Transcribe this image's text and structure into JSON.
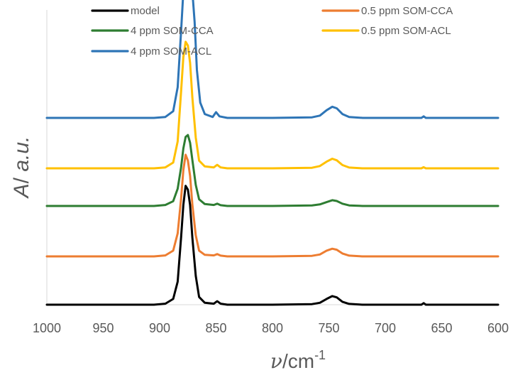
{
  "chart_data": {
    "type": "line",
    "xlabel_symbol": "ν",
    "xlabel_unit": "/cm",
    "xlabel_sup": "-1",
    "ylabel_italic": "A",
    "ylabel_slash": "/ ",
    "ylabel_unit": "a.u.",
    "xlim": [
      1000,
      600
    ],
    "x_reversed": true,
    "x_ticks": [
      "1000",
      "950",
      "900",
      "850",
      "800",
      "750",
      "700",
      "650",
      "600"
    ],
    "y_tick_labels": false,
    "grid": false,
    "legend_position": "top",
    "series": [
      {
        "name": "model",
        "color": "#000000",
        "baseline": 0.0,
        "points": [
          [
            1000,
            0.0
          ],
          [
            950,
            0.0
          ],
          [
            905,
            0.0
          ],
          [
            895,
            0.005
          ],
          [
            888,
            0.03
          ],
          [
            884,
            0.12
          ],
          [
            881,
            0.35
          ],
          [
            879,
            0.52
          ],
          [
            877,
            0.62
          ],
          [
            875,
            0.6
          ],
          [
            873,
            0.52
          ],
          [
            871,
            0.35
          ],
          [
            868,
            0.15
          ],
          [
            865,
            0.04
          ],
          [
            860,
            0.01
          ],
          [
            852,
            0.005
          ],
          [
            849,
            0.018
          ],
          [
            846,
            0.005
          ],
          [
            840,
            0.0
          ],
          [
            800,
            0.0
          ],
          [
            765,
            0.003
          ],
          [
            758,
            0.01
          ],
          [
            752,
            0.03
          ],
          [
            747,
            0.045
          ],
          [
            743,
            0.038
          ],
          [
            738,
            0.015
          ],
          [
            732,
            0.004
          ],
          [
            720,
            0.0
          ],
          [
            700,
            0.0
          ],
          [
            668,
            0.0
          ],
          [
            666,
            0.008
          ],
          [
            664,
            0.0
          ],
          [
            640,
            0.0
          ],
          [
            600,
            0.0
          ]
        ]
      },
      {
        "name": "0.5 ppm SOM-CCA",
        "color": "#ed7d31",
        "baseline": 0.0,
        "points": [
          [
            1000,
            0.0
          ],
          [
            950,
            0.0
          ],
          [
            905,
            0.0
          ],
          [
            895,
            0.005
          ],
          [
            888,
            0.03
          ],
          [
            884,
            0.12
          ],
          [
            881,
            0.3
          ],
          [
            879,
            0.45
          ],
          [
            877,
            0.53
          ],
          [
            875,
            0.5
          ],
          [
            873,
            0.42
          ],
          [
            871,
            0.27
          ],
          [
            868,
            0.11
          ],
          [
            865,
            0.03
          ],
          [
            860,
            0.008
          ],
          [
            852,
            0.005
          ],
          [
            849,
            0.012
          ],
          [
            846,
            0.004
          ],
          [
            840,
            0.0
          ],
          [
            800,
            0.0
          ],
          [
            765,
            0.003
          ],
          [
            758,
            0.01
          ],
          [
            752,
            0.03
          ],
          [
            747,
            0.04
          ],
          [
            743,
            0.035
          ],
          [
            738,
            0.015
          ],
          [
            732,
            0.004
          ],
          [
            720,
            0.0
          ],
          [
            700,
            0.0
          ],
          [
            640,
            0.0
          ],
          [
            600,
            0.0
          ]
        ]
      },
      {
        "name": "4 ppm SOM-CCA",
        "color": "#2e7d32",
        "baseline": 0.0,
        "points": [
          [
            1000,
            0.0
          ],
          [
            950,
            0.0
          ],
          [
            905,
            0.0
          ],
          [
            895,
            0.005
          ],
          [
            888,
            0.025
          ],
          [
            884,
            0.09
          ],
          [
            881,
            0.2
          ],
          [
            879,
            0.3
          ],
          [
            877,
            0.36
          ],
          [
            875,
            0.37
          ],
          [
            873,
            0.33
          ],
          [
            871,
            0.24
          ],
          [
            868,
            0.11
          ],
          [
            865,
            0.035
          ],
          [
            860,
            0.01
          ],
          [
            852,
            0.005
          ],
          [
            849,
            0.012
          ],
          [
            846,
            0.004
          ],
          [
            840,
            0.0
          ],
          [
            800,
            0.0
          ],
          [
            765,
            0.003
          ],
          [
            758,
            0.008
          ],
          [
            752,
            0.02
          ],
          [
            747,
            0.03
          ],
          [
            743,
            0.026
          ],
          [
            738,
            0.012
          ],
          [
            732,
            0.003
          ],
          [
            720,
            0.0
          ],
          [
            700,
            0.0
          ],
          [
            640,
            0.0
          ],
          [
            600,
            0.0
          ]
        ]
      },
      {
        "name": "0.5 ppm SOM-ACL",
        "color": "#ffc000",
        "baseline": 0.0,
        "points": [
          [
            1000,
            0.0
          ],
          [
            950,
            0.0
          ],
          [
            905,
            0.0
          ],
          [
            895,
            0.005
          ],
          [
            888,
            0.03
          ],
          [
            884,
            0.14
          ],
          [
            881,
            0.4
          ],
          [
            879,
            0.58
          ],
          [
            877,
            0.66
          ],
          [
            875,
            0.64
          ],
          [
            873,
            0.55
          ],
          [
            871,
            0.37
          ],
          [
            868,
            0.16
          ],
          [
            865,
            0.04
          ],
          [
            860,
            0.01
          ],
          [
            852,
            0.005
          ],
          [
            849,
            0.018
          ],
          [
            846,
            0.005
          ],
          [
            840,
            0.0
          ],
          [
            800,
            0.0
          ],
          [
            765,
            0.003
          ],
          [
            758,
            0.012
          ],
          [
            752,
            0.035
          ],
          [
            747,
            0.05
          ],
          [
            743,
            0.042
          ],
          [
            738,
            0.017
          ],
          [
            732,
            0.004
          ],
          [
            720,
            0.0
          ],
          [
            700,
            0.0
          ],
          [
            668,
            0.0
          ],
          [
            666,
            0.006
          ],
          [
            664,
            0.0
          ],
          [
            640,
            0.0
          ],
          [
            600,
            0.0
          ]
        ]
      },
      {
        "name": "4 ppm SOM-ACL",
        "color": "#2e75b6",
        "baseline": 0.0,
        "points": [
          [
            1000,
            0.0
          ],
          [
            950,
            0.0
          ],
          [
            905,
            0.0
          ],
          [
            895,
            0.005
          ],
          [
            888,
            0.035
          ],
          [
            884,
            0.16
          ],
          [
            881,
            0.45
          ],
          [
            879,
            0.66
          ],
          [
            877,
            0.75
          ],
          [
            875,
            0.72
          ],
          [
            873,
            0.68
          ],
          [
            871,
            0.66
          ],
          [
            869,
            0.5
          ],
          [
            867,
            0.25
          ],
          [
            864,
            0.08
          ],
          [
            860,
            0.02
          ],
          [
            853,
            0.005
          ],
          [
            850,
            0.03
          ],
          [
            847,
            0.008
          ],
          [
            840,
            0.0
          ],
          [
            800,
            0.0
          ],
          [
            765,
            0.003
          ],
          [
            758,
            0.012
          ],
          [
            752,
            0.04
          ],
          [
            747,
            0.058
          ],
          [
            743,
            0.05
          ],
          [
            738,
            0.02
          ],
          [
            732,
            0.005
          ],
          [
            720,
            0.0
          ],
          [
            700,
            0.0
          ],
          [
            668,
            0.0
          ],
          [
            666,
            0.008
          ],
          [
            664,
            0.0
          ],
          [
            640,
            0.0
          ],
          [
            600,
            0.0
          ]
        ]
      }
    ]
  }
}
